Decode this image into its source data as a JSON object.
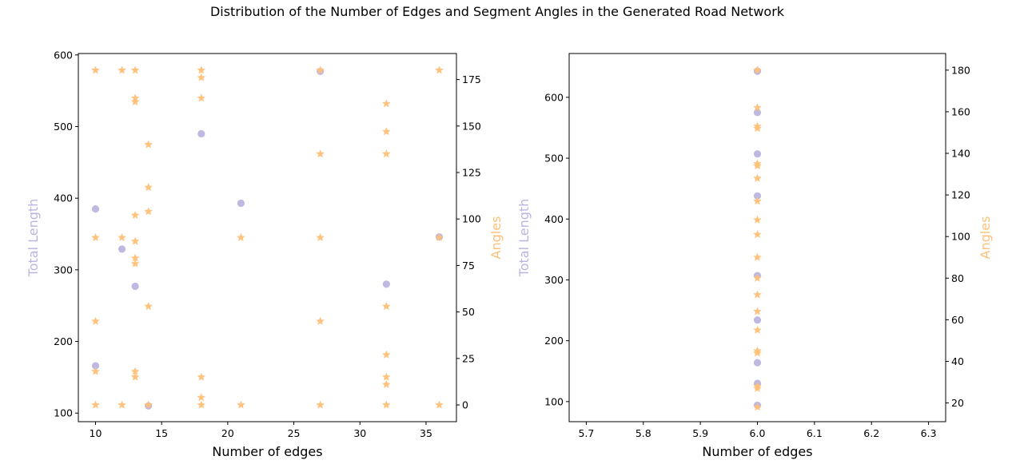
{
  "figure": {
    "suptitle": "Distribution of the Number of Edges and Segment Angles in the Generated Road Network"
  },
  "colors": {
    "length": "#bcb4df",
    "angle": "#ffc078",
    "axis": "#000000"
  },
  "chart_data": [
    {
      "type": "scatter",
      "xlabel": "Number of edges",
      "ylabel_left": "Total Length",
      "ylabel_right": "Angles",
      "xlim": [
        8.7,
        37.3
      ],
      "ylim_left": [
        88,
        602
      ],
      "ylim_right": [
        -9,
        189
      ],
      "x_ticks": [
        10,
        15,
        20,
        25,
        30,
        35
      ],
      "y_left_ticks": [
        100,
        200,
        300,
        400,
        500,
        600
      ],
      "y_right_ticks": [
        0,
        25,
        50,
        75,
        100,
        125,
        150,
        175
      ],
      "grid": false,
      "series": [
        {
          "marker": "circle",
          "axis": "left",
          "points": [
            [
              10,
              385
            ],
            [
              10,
              166
            ],
            [
              12,
              329
            ],
            [
              13,
              277
            ],
            [
              14,
              110
            ],
            [
              18,
              490
            ],
            [
              21,
              393
            ],
            [
              27,
              577
            ],
            [
              32,
              280
            ],
            [
              36,
              346
            ]
          ]
        },
        {
          "marker": "star",
          "axis": "right",
          "points": [
            [
              10,
              180
            ],
            [
              10,
              90
            ],
            [
              10,
              45
            ],
            [
              10,
              18
            ],
            [
              10,
              0
            ],
            [
              12,
              180
            ],
            [
              12,
              90
            ],
            [
              12,
              0
            ],
            [
              13,
              180
            ],
            [
              13,
              165
            ],
            [
              13,
              163
            ],
            [
              13,
              102
            ],
            [
              13,
              88
            ],
            [
              13,
              79
            ],
            [
              13,
              76
            ],
            [
              13,
              18
            ],
            [
              13,
              15
            ],
            [
              14,
              140
            ],
            [
              14,
              117
            ],
            [
              14,
              104
            ],
            [
              14,
              53
            ],
            [
              14,
              0
            ],
            [
              18,
              180
            ],
            [
              18,
              176
            ],
            [
              18,
              165
            ],
            [
              18,
              15
            ],
            [
              18,
              4
            ],
            [
              18,
              0
            ],
            [
              21,
              90
            ],
            [
              21,
              0
            ],
            [
              27,
              180
            ],
            [
              27,
              135
            ],
            [
              27,
              90
            ],
            [
              27,
              45
            ],
            [
              27,
              0
            ],
            [
              32,
              162
            ],
            [
              32,
              147
            ],
            [
              32,
              135
            ],
            [
              32,
              53
            ],
            [
              32,
              27
            ],
            [
              32,
              15
            ],
            [
              32,
              11
            ],
            [
              32,
              0
            ],
            [
              36,
              180
            ],
            [
              36,
              90
            ],
            [
              36,
              0
            ]
          ]
        }
      ]
    },
    {
      "type": "scatter",
      "xlabel": "Number of edges",
      "ylabel_left": "Total Length",
      "ylabel_right": "Angles",
      "xlim": [
        5.67,
        6.33
      ],
      "ylim_left": [
        67,
        672
      ],
      "ylim_right": [
        11,
        188
      ],
      "x_ticks": [
        "5.7",
        "5.8",
        "5.9",
        "6.0",
        "6.1",
        "6.2",
        "6.3"
      ],
      "y_left_ticks": [
        100,
        200,
        300,
        400,
        500,
        600
      ],
      "y_right_ticks": [
        20,
        40,
        60,
        80,
        100,
        120,
        140,
        160,
        180
      ],
      "grid": false,
      "series": [
        {
          "marker": "circle",
          "axis": "left",
          "points": [
            [
              6.0,
              643
            ],
            [
              6.0,
              575
            ],
            [
              6.0,
              507
            ],
            [
              6.0,
              438
            ],
            [
              6.0,
              307
            ],
            [
              6.0,
              234
            ],
            [
              6.0,
              164
            ],
            [
              6.0,
              130
            ],
            [
              6.0,
              94
            ]
          ]
        },
        {
          "marker": "star",
          "axis": "right",
          "points": [
            [
              6.0,
              180
            ],
            [
              6.0,
              162
            ],
            [
              6.0,
              153
            ],
            [
              6.0,
              152
            ],
            [
              6.0,
              135
            ],
            [
              6.0,
              134
            ],
            [
              6.0,
              128
            ],
            [
              6.0,
              117
            ],
            [
              6.0,
              108
            ],
            [
              6.0,
              101
            ],
            [
              6.0,
              90
            ],
            [
              6.0,
              80
            ],
            [
              6.0,
              72
            ],
            [
              6.0,
              64
            ],
            [
              6.0,
              55
            ],
            [
              6.0,
              45
            ],
            [
              6.0,
              44
            ],
            [
              6.0,
              28
            ],
            [
              6.0,
              27
            ],
            [
              6.0,
              18
            ]
          ]
        }
      ]
    }
  ]
}
